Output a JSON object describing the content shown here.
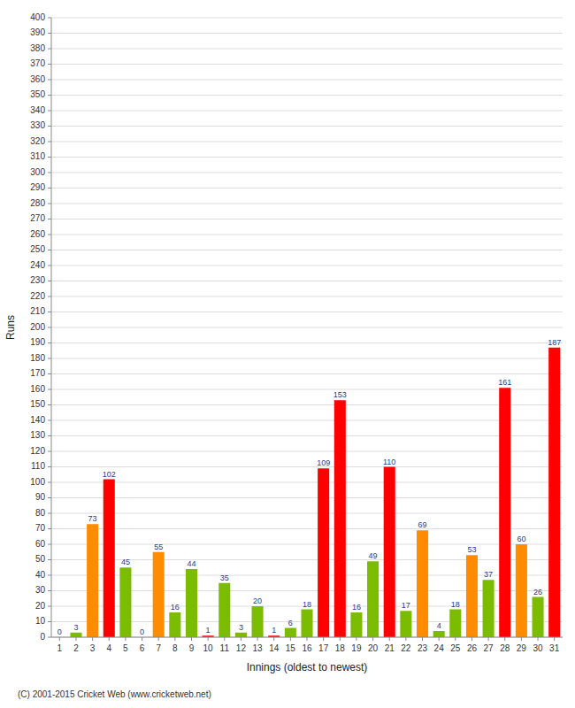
{
  "chart_data": {
    "type": "bar",
    "xlabel": "Innings (oldest to newest)",
    "ylabel": "Runs",
    "categories": [
      "1",
      "2",
      "3",
      "4",
      "5",
      "6",
      "7",
      "8",
      "9",
      "10",
      "11",
      "12",
      "13",
      "14",
      "15",
      "16",
      "17",
      "18",
      "19",
      "20",
      "21",
      "22",
      "23",
      "24",
      "25",
      "26",
      "27",
      "28",
      "29",
      "30",
      "31"
    ],
    "values": [
      0,
      3,
      73,
      102,
      45,
      0,
      55,
      16,
      44,
      1,
      35,
      3,
      20,
      1,
      6,
      18,
      109,
      153,
      16,
      49,
      110,
      17,
      69,
      4,
      18,
      53,
      37,
      161,
      60,
      26,
      187
    ],
    "colors": [
      "#ff0000",
      "#7cbc00",
      "#ff8c00",
      "#ff0000",
      "#7cbc00",
      "#ff0000",
      "#ff8c00",
      "#7cbc00",
      "#7cbc00",
      "#ff0000",
      "#7cbc00",
      "#7cbc00",
      "#7cbc00",
      "#ff0000",
      "#7cbc00",
      "#7cbc00",
      "#ff0000",
      "#ff0000",
      "#7cbc00",
      "#7cbc00",
      "#ff0000",
      "#7cbc00",
      "#ff8c00",
      "#7cbc00",
      "#7cbc00",
      "#ff8c00",
      "#7cbc00",
      "#ff0000",
      "#ff8c00",
      "#7cbc00",
      "#ff0000"
    ],
    "ylim": [
      0,
      400
    ],
    "yticks": [
      0,
      10,
      20,
      30,
      40,
      50,
      60,
      70,
      80,
      90,
      100,
      110,
      120,
      130,
      140,
      150,
      160,
      170,
      180,
      190,
      200,
      210,
      220,
      230,
      240,
      250,
      260,
      270,
      280,
      290,
      300,
      310,
      320,
      330,
      340,
      350,
      360,
      370,
      380,
      390,
      400
    ],
    "grid": true,
    "data_labels": true,
    "annotations": [
      "(C) 2001-2015 Cricket Web (www.cricketweb.net)"
    ]
  }
}
